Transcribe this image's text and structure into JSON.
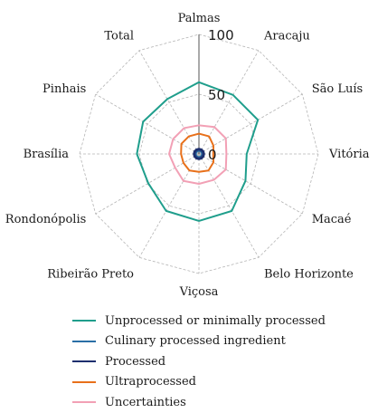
{
  "chart_data": {
    "type": "radar",
    "categories": [
      "Palmas",
      "Aracaju",
      "São Luís",
      "Vitória",
      "Macaé",
      "Belo Horizonte",
      "Viçosa",
      "Ribeirão Preto",
      "Rondonópolis",
      "Brasília",
      "Pinhais",
      "Total"
    ],
    "r_ticks": [
      "0",
      "50",
      "100"
    ],
    "r_max": 100,
    "grid": true,
    "legend_position": "bottom",
    "series": [
      {
        "name": "Unprocessed or minimally processed",
        "color": "#1f9e8c",
        "values": [
          60,
          57,
          57,
          40,
          45,
          55,
          56,
          55,
          49,
          52,
          54,
          53
        ]
      },
      {
        "name": "Culinary processed ingredient",
        "color": "#2a6fa6",
        "values": [
          3,
          3,
          3,
          3,
          3,
          3,
          3,
          3,
          3,
          3,
          3,
          3
        ]
      },
      {
        "name": "Processed",
        "color": "#1d2f6e",
        "values": [
          4,
          4,
          4,
          4,
          4,
          4,
          4,
          4,
          4,
          4,
          4,
          4
        ]
      },
      {
        "name": "Ultraprocessed",
        "color": "#e8701a",
        "values": [
          17,
          17,
          14,
          12,
          14,
          16,
          15,
          16,
          15,
          15,
          17,
          17
        ]
      },
      {
        "name": "Uncertainties",
        "color": "#f2a0b5",
        "values": [
          24,
          26,
          26,
          23,
          26,
          25,
          25,
          26,
          23,
          25,
          25,
          25
        ]
      }
    ]
  }
}
